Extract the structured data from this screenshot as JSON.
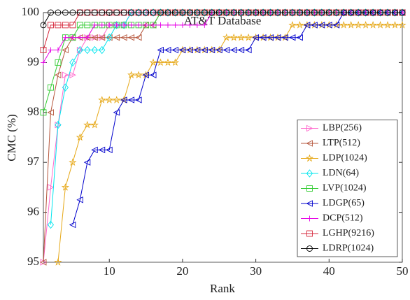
{
  "chart_data": {
    "type": "line",
    "title": "AT&T Database",
    "x_label": "Rank",
    "y_label": "CMC (%)",
    "x": [
      1,
      2,
      3,
      4,
      5,
      6,
      7,
      8,
      9,
      10,
      11,
      12,
      13,
      14,
      15,
      16,
      17,
      18,
      19,
      20,
      21,
      22,
      23,
      24,
      25,
      26,
      27,
      28,
      29,
      30,
      31,
      32,
      33,
      34,
      35,
      36,
      37,
      38,
      39,
      40,
      41,
      42,
      43,
      44,
      45,
      46,
      47,
      48,
      49,
      50
    ],
    "xlim": [
      1,
      50
    ],
    "xticks": [
      10,
      20,
      30,
      40,
      50
    ],
    "ylim": [
      95,
      100
    ],
    "yticks": [
      95,
      96,
      97,
      98,
      99,
      100
    ],
    "legend": "lower right",
    "series": [
      {
        "name": "LBP(256)",
        "color": "#ff66cc",
        "marker": "triangle-right",
        "values": [
          95,
          96.5,
          97.75,
          98.75,
          98.75,
          99.25,
          99.5,
          99.5,
          99.5,
          99.75,
          99.75,
          99.75,
          100,
          100,
          100,
          100,
          100,
          100,
          100,
          100,
          100,
          100,
          100,
          100,
          100,
          100,
          100,
          100,
          100,
          100,
          100,
          100,
          100,
          100,
          100,
          100,
          100,
          100,
          100,
          100,
          100,
          100,
          100,
          100,
          100,
          100,
          100,
          100,
          100,
          100
        ]
      },
      {
        "name": "LTP(512)",
        "color": "#b5553b",
        "marker": "triangle-left",
        "values": [
          95,
          98,
          98.75,
          99.25,
          99.5,
          99.5,
          99.5,
          99.5,
          99.5,
          99.5,
          99.5,
          99.5,
          99.5,
          99.5,
          99.75,
          99.75,
          100,
          100,
          100,
          100,
          100,
          100,
          100,
          100,
          100,
          100,
          100,
          100,
          100,
          100,
          100,
          100,
          100,
          100,
          100,
          100,
          100,
          100,
          100,
          100,
          100,
          100,
          100,
          100,
          100,
          100,
          100,
          100,
          100,
          100
        ]
      },
      {
        "name": "LDP(1024)",
        "color": "#e6a817",
        "marker": "star",
        "values": [
          null,
          null,
          95,
          96.5,
          97,
          97.5,
          97.75,
          97.75,
          98.25,
          98.25,
          98.25,
          98.25,
          98.75,
          98.75,
          98.75,
          99,
          99,
          99,
          99,
          99.25,
          99.25,
          99.25,
          99.25,
          99.25,
          99.25,
          99.5,
          99.5,
          99.5,
          99.5,
          99.5,
          99.5,
          99.5,
          99.5,
          99.5,
          99.75,
          99.75,
          99.75,
          99.75,
          99.75,
          99.75,
          99.75,
          99.75,
          99.75,
          99.75,
          99.75,
          99.75,
          99.75,
          99.75,
          99.75,
          99.75
        ]
      },
      {
        "name": "LDN(64)",
        "color": "#00e5ee",
        "marker": "diamond",
        "values": [
          null,
          95.75,
          97.75,
          98.5,
          99,
          99.25,
          99.25,
          99.25,
          99.25,
          99.5,
          99.75,
          99.75,
          100,
          100,
          100,
          100,
          100,
          100,
          100,
          100,
          100,
          100,
          100,
          100,
          100,
          100,
          100,
          100,
          100,
          100,
          100,
          100,
          100,
          100,
          100,
          100,
          100,
          100,
          100,
          100,
          100,
          100,
          100,
          100,
          100,
          100,
          100,
          100,
          100,
          100
        ]
      },
      {
        "name": "LVP(1024)",
        "color": "#33cc33",
        "marker": "square",
        "values": [
          98,
          98.5,
          99,
          99.5,
          99.5,
          99.75,
          99.75,
          99.75,
          99.75,
          99.75,
          99.75,
          99.75,
          99.75,
          99.75,
          99.75,
          99.75,
          100,
          100,
          100,
          100,
          100,
          100,
          100,
          100,
          100,
          100,
          100,
          100,
          100,
          100,
          100,
          100,
          100,
          100,
          100,
          100,
          100,
          100,
          100,
          100,
          100,
          100,
          100,
          100,
          100,
          100,
          100,
          100,
          100,
          100
        ]
      },
      {
        "name": "LDGP(65)",
        "color": "#0000cc",
        "marker": "triangle-left",
        "values": [
          null,
          null,
          null,
          null,
          95.75,
          96.25,
          97,
          97.25,
          97.25,
          97.25,
          98,
          98.25,
          98.25,
          98.25,
          98.75,
          98.75,
          99.25,
          99.25,
          99.25,
          99.25,
          99.25,
          99.25,
          99.25,
          99.25,
          99.25,
          99.25,
          99.25,
          99.25,
          99.25,
          99.5,
          99.5,
          99.5,
          99.5,
          99.5,
          99.5,
          99.5,
          99.75,
          99.75,
          99.75,
          99.75,
          99.75,
          100,
          100,
          100,
          100,
          100,
          100,
          100,
          100,
          100
        ]
      },
      {
        "name": "DCP(512)",
        "color": "#e600e6",
        "marker": "plus",
        "values": [
          99,
          99.25,
          99.25,
          99.5,
          99.5,
          99.5,
          99.5,
          99.75,
          99.75,
          99.75,
          99.75,
          99.75,
          99.75,
          99.75,
          99.75,
          99.75,
          99.75,
          99.75,
          99.75,
          99.75,
          99.75,
          99.75,
          99.75,
          100,
          100,
          100,
          100,
          100,
          100,
          100,
          100,
          100,
          100,
          100,
          100,
          100,
          100,
          100,
          100,
          100,
          100,
          100,
          100,
          100,
          100,
          100,
          100,
          100,
          100,
          100
        ]
      },
      {
        "name": "LGHP(9216)",
        "color": "#d6283c",
        "marker": "square",
        "values": [
          99.25,
          99.75,
          99.75,
          99.75,
          99.75,
          100,
          100,
          100,
          100,
          100,
          100,
          100,
          100,
          100,
          100,
          100,
          100,
          100,
          100,
          100,
          100,
          100,
          100,
          100,
          100,
          100,
          100,
          100,
          100,
          100,
          100,
          100,
          100,
          100,
          100,
          100,
          100,
          100,
          100,
          100,
          100,
          100,
          100,
          100,
          100,
          100,
          100,
          100,
          100,
          100
        ]
      },
      {
        "name": "LDRP(1024)",
        "color": "#000000",
        "marker": "circle",
        "values": [
          99.75,
          100,
          100,
          100,
          100,
          100,
          100,
          100,
          100,
          100,
          100,
          100,
          100,
          100,
          100,
          100,
          100,
          100,
          100,
          100,
          100,
          100,
          100,
          100,
          100,
          100,
          100,
          100,
          100,
          100,
          100,
          100,
          100,
          100,
          100,
          100,
          100,
          100,
          100,
          100,
          100,
          100,
          100,
          100,
          100,
          100,
          100,
          100,
          100,
          100
        ]
      }
    ]
  }
}
